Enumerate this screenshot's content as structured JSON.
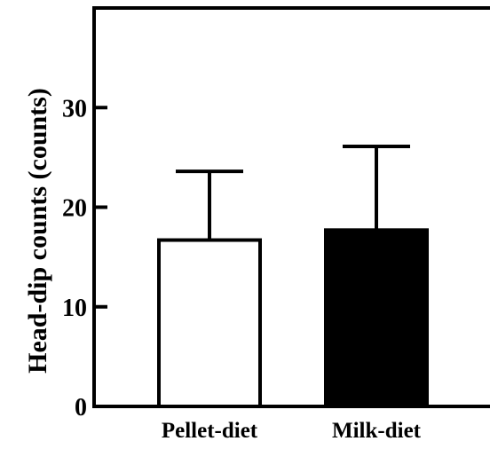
{
  "chart_data": {
    "type": "bar",
    "title": "",
    "xlabel": "",
    "ylabel": "Head-dip counts (counts)",
    "categories": [
      "Pellet-diet",
      "Milk-diet"
    ],
    "values": [
      16.7,
      17.7
    ],
    "errors": [
      6.9,
      8.4
    ],
    "bar_fills": [
      "#ffffff",
      "#000000"
    ],
    "ylim": [
      0,
      40
    ],
    "yticks": [
      0,
      10,
      20,
      30
    ],
    "ytick_labels": [
      "0",
      "10",
      "20",
      "30"
    ],
    "grid": false,
    "legend": "none"
  }
}
